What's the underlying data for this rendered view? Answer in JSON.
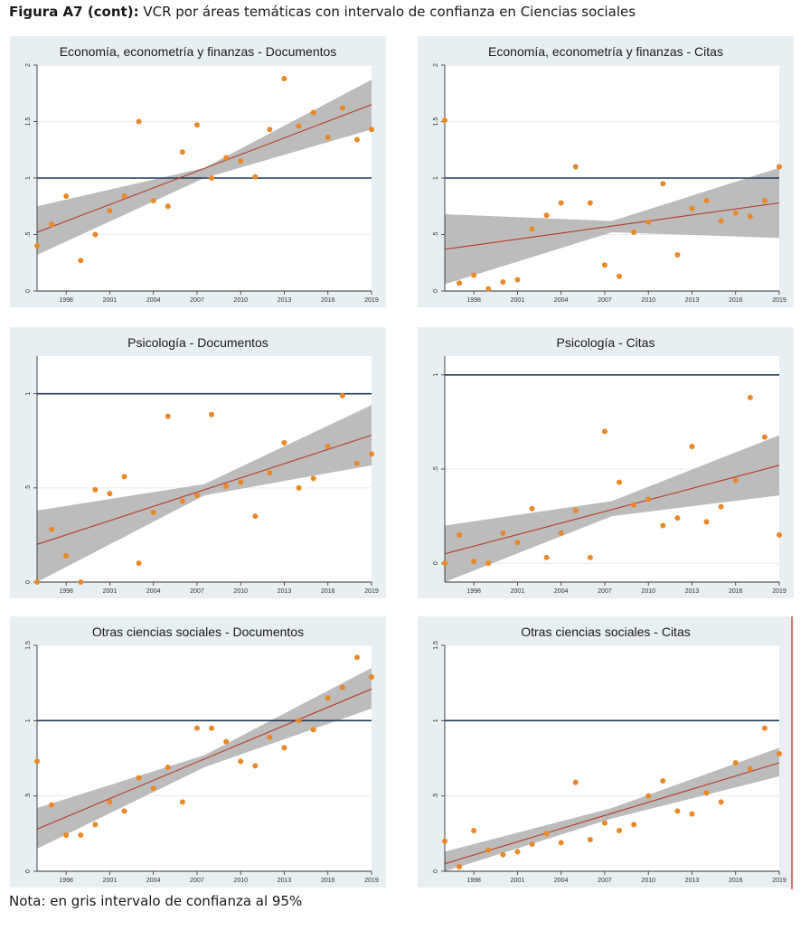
{
  "figure": {
    "label": "Figura A7 (cont):",
    "title": "VCR por áreas temáticas con intervalo de confianza en Ciencias sociales",
    "note": "Nota: en gris intervalo de confianza al 95%"
  },
  "colors": {
    "panel_bg": "#e8eff2",
    "plot_bg": "#ffffff",
    "ci_band": "#b8b8b8",
    "points": "#e8892a",
    "fit_line": "#b53a2a",
    "reference_line": "#1f3a5a"
  },
  "chart_data": [
    {
      "type": "scatter",
      "title": "Economía, econometría y finanzas - Documentos",
      "xlim": [
        1996,
        2019
      ],
      "ylim": [
        0,
        2
      ],
      "xticks": [
        1998,
        2001,
        2004,
        2007,
        2010,
        2013,
        2016,
        2019
      ],
      "yticks": [
        0,
        0.5,
        1,
        1.5,
        2
      ],
      "ytick_labels": [
        "0",
        ".5",
        "1",
        "1.5",
        "2"
      ],
      "reference_y": 1,
      "fit": {
        "x": [
          1996,
          2019
        ],
        "y": [
          0.52,
          1.65
        ]
      },
      "ci": {
        "x": [
          1996,
          2007.5,
          2019
        ],
        "lower": [
          0.32,
          1.0,
          1.43
        ],
        "upper": [
          0.75,
          1.09,
          1.87
        ]
      },
      "x": [
        1996,
        1997,
        1998,
        1999,
        2000,
        2001,
        2002,
        2003,
        2004,
        2005,
        2006,
        2007,
        2008,
        2009,
        2010,
        2011,
        2012,
        2013,
        2014,
        2015,
        2016,
        2017,
        2018,
        2019
      ],
      "y": [
        0.4,
        0.59,
        0.84,
        0.27,
        0.5,
        0.71,
        0.84,
        1.5,
        0.8,
        0.75,
        1.23,
        1.47,
        1.0,
        1.18,
        1.15,
        1.01,
        1.43,
        1.88,
        1.46,
        1.58,
        1.36,
        1.62,
        1.34,
        1.43
      ]
    },
    {
      "type": "scatter",
      "title": "Economía, econometría y finanzas - Citas",
      "xlim": [
        1996,
        2019
      ],
      "ylim": [
        0,
        2
      ],
      "xticks": [
        1998,
        2001,
        2004,
        2007,
        2010,
        2013,
        2016,
        2019
      ],
      "yticks": [
        0,
        0.5,
        1,
        1.5,
        2
      ],
      "ytick_labels": [
        "0",
        ".5",
        "1",
        "1.5",
        "2"
      ],
      "reference_y": 1,
      "fit": {
        "x": [
          1996,
          2019
        ],
        "y": [
          0.37,
          0.78
        ]
      },
      "ci": {
        "x": [
          1996,
          2007.5,
          2019
        ],
        "lower": [
          0.06,
          0.52,
          0.47
        ],
        "upper": [
          0.68,
          0.62,
          1.09
        ]
      },
      "x": [
        1996,
        1997,
        1998,
        1999,
        2000,
        2001,
        2002,
        2003,
        2004,
        2005,
        2006,
        2007,
        2008,
        2009,
        2010,
        2011,
        2012,
        2013,
        2014,
        2015,
        2016,
        2017,
        2018,
        2019
      ],
      "y": [
        1.51,
        0.07,
        0.14,
        0.02,
        0.08,
        0.1,
        0.55,
        0.67,
        0.78,
        1.1,
        0.78,
        0.23,
        0.13,
        0.52,
        0.61,
        0.95,
        0.32,
        0.73,
        0.8,
        0.62,
        0.69,
        0.66,
        0.8,
        1.1
      ]
    },
    {
      "type": "scatter",
      "title": "Psicología - Documentos",
      "xlim": [
        1996,
        2019
      ],
      "ylim": [
        0,
        1.2
      ],
      "xticks": [
        1998,
        2001,
        2004,
        2007,
        2010,
        2013,
        2016,
        2019
      ],
      "yticks": [
        0,
        0.5,
        1
      ],
      "ytick_labels": [
        "0",
        ".5",
        "1"
      ],
      "reference_y": 1,
      "fit": {
        "x": [
          1996,
          2019
        ],
        "y": [
          0.2,
          0.78
        ]
      },
      "ci": {
        "x": [
          1996,
          2007.5,
          2019
        ],
        "lower": [
          0.0,
          0.46,
          0.62
        ],
        "upper": [
          0.38,
          0.52,
          0.94
        ]
      },
      "x": [
        1996,
        1997,
        1998,
        1999,
        2000,
        2001,
        2002,
        2003,
        2004,
        2005,
        2006,
        2007,
        2008,
        2009,
        2010,
        2011,
        2012,
        2013,
        2014,
        2015,
        2016,
        2017,
        2018,
        2019
      ],
      "y": [
        0.0,
        0.28,
        0.14,
        0.0,
        0.49,
        0.47,
        0.56,
        0.1,
        0.37,
        0.88,
        0.43,
        0.46,
        0.89,
        0.51,
        0.53,
        0.35,
        0.58,
        0.74,
        0.5,
        0.55,
        0.72,
        0.99,
        0.63,
        0.68
      ]
    },
    {
      "type": "scatter",
      "title": "Psicología - Citas",
      "xlim": [
        1996,
        2019
      ],
      "ylim": [
        -0.1,
        1.1
      ],
      "xticks": [
        1998,
        2001,
        2004,
        2007,
        2010,
        2013,
        2016,
        2019
      ],
      "yticks": [
        0,
        0.5,
        1
      ],
      "ytick_labels": [
        "0",
        ".5",
        "1"
      ],
      "reference_y": 1,
      "fit": {
        "x": [
          1996,
          2019
        ],
        "y": [
          0.05,
          0.52
        ]
      },
      "ci": {
        "x": [
          1996,
          2007.5,
          2019
        ],
        "lower": [
          -0.11,
          0.25,
          0.36
        ],
        "upper": [
          0.2,
          0.33,
          0.68
        ]
      },
      "x": [
        1996,
        1997,
        1998,
        1999,
        2000,
        2001,
        2002,
        2003,
        2004,
        2005,
        2006,
        2007,
        2008,
        2009,
        2010,
        2011,
        2012,
        2013,
        2014,
        2015,
        2016,
        2017,
        2018,
        2019
      ],
      "y": [
        0.0,
        0.15,
        0.01,
        0.0,
        0.16,
        0.11,
        0.29,
        0.03,
        0.16,
        0.28,
        0.03,
        0.7,
        0.43,
        0.31,
        0.34,
        0.2,
        0.24,
        0.62,
        0.22,
        0.3,
        0.44,
        0.88,
        0.67,
        0.15
      ]
    },
    {
      "type": "scatter",
      "title": "Otras ciencias sociales - Documentos",
      "xlim": [
        1996,
        2019
      ],
      "ylim": [
        0,
        1.5
      ],
      "xticks": [
        1998,
        2001,
        2004,
        2007,
        2010,
        2013,
        2016,
        2019
      ],
      "yticks": [
        0,
        0.5,
        1,
        1.5
      ],
      "ytick_labels": [
        "0",
        ".5",
        "1",
        "1.5"
      ],
      "reference_y": 1,
      "fit": {
        "x": [
          1996,
          2019
        ],
        "y": [
          0.28,
          1.21
        ]
      },
      "ci": {
        "x": [
          1996,
          2007.5,
          2019
        ],
        "lower": [
          0.15,
          0.69,
          1.08
        ],
        "upper": [
          0.42,
          0.77,
          1.35
        ]
      },
      "x": [
        1996,
        1997,
        1998,
        1999,
        2000,
        2001,
        2002,
        2003,
        2004,
        2005,
        2006,
        2007,
        2008,
        2009,
        2010,
        2011,
        2012,
        2013,
        2014,
        2015,
        2016,
        2017,
        2018,
        2019
      ],
      "y": [
        0.73,
        0.44,
        0.24,
        0.24,
        0.31,
        0.46,
        0.4,
        0.62,
        0.55,
        0.69,
        0.46,
        0.95,
        0.95,
        0.86,
        0.73,
        0.7,
        0.89,
        0.82,
        1.0,
        0.94,
        1.15,
        1.22,
        1.42,
        1.29
      ]
    },
    {
      "type": "scatter",
      "title": "Otras ciencias sociales - Citas",
      "xlim": [
        1996,
        2019
      ],
      "ylim": [
        0,
        1.5
      ],
      "xticks": [
        1998,
        2001,
        2004,
        2007,
        2010,
        2013,
        2016,
        2019
      ],
      "yticks": [
        0,
        0.5,
        1,
        1.5
      ],
      "ytick_labels": [
        "0",
        ".5",
        "1",
        "1.5"
      ],
      "reference_y": 1,
      "fit": {
        "x": [
          1996,
          2019
        ],
        "y": [
          0.05,
          0.72
        ]
      },
      "ci": {
        "x": [
          1996,
          2007.5,
          2019
        ],
        "lower": [
          -0.03,
          0.35,
          0.63
        ],
        "upper": [
          0.13,
          0.42,
          0.82
        ]
      },
      "x": [
        1996,
        1997,
        1998,
        1999,
        2000,
        2001,
        2002,
        2003,
        2004,
        2005,
        2006,
        2007,
        2008,
        2009,
        2010,
        2011,
        2012,
        2013,
        2014,
        2015,
        2016,
        2017,
        2018,
        2019
      ],
      "y": [
        0.2,
        0.03,
        0.27,
        0.14,
        0.11,
        0.13,
        0.18,
        0.25,
        0.19,
        0.59,
        0.21,
        0.32,
        0.27,
        0.31,
        0.5,
        0.6,
        0.4,
        0.38,
        0.52,
        0.46,
        0.72,
        0.68,
        0.95,
        0.78
      ]
    }
  ]
}
